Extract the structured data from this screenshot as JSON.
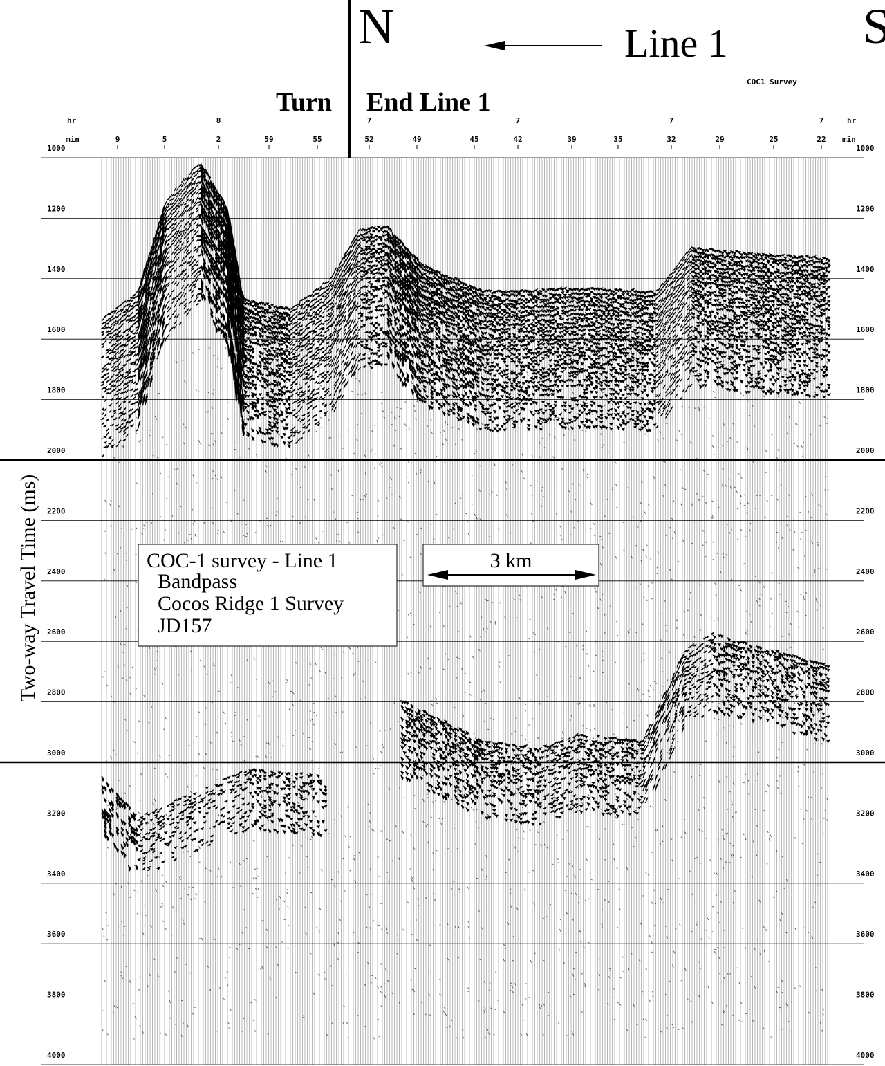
{
  "chart_data": {
    "type": "seismic",
    "title": "Line 1",
    "subtitle": "COC1 Survey",
    "annotations": {
      "north": "N",
      "south": "S",
      "turn": "Turn",
      "end_line": "End Line 1",
      "scale": "3 km"
    },
    "legend_lines": [
      "COC-1 survey - Line 1",
      "Bandpass",
      "Cocos Ridge 1 Survey",
      "JD157"
    ],
    "y_label": "Two-way Travel Time (ms)",
    "x_row_labels": {
      "hr": "hr",
      "min": "min"
    },
    "x_hours": [
      null,
      null,
      "8",
      null,
      null,
      "7",
      null,
      null,
      "7",
      null,
      null,
      "7",
      null,
      null,
      "7"
    ],
    "categories": [
      "9",
      "5",
      "2",
      "59",
      "55",
      "52",
      "49",
      "45",
      "42",
      "39",
      "35",
      "32",
      "29",
      "25",
      "22"
    ],
    "ylim": [
      1000,
      4000
    ],
    "yticks": [
      1000,
      1200,
      1400,
      1600,
      1800,
      2000,
      2200,
      2400,
      2600,
      2800,
      3000,
      3200,
      3400,
      3600,
      3800,
      4000
    ],
    "grid": true
  }
}
